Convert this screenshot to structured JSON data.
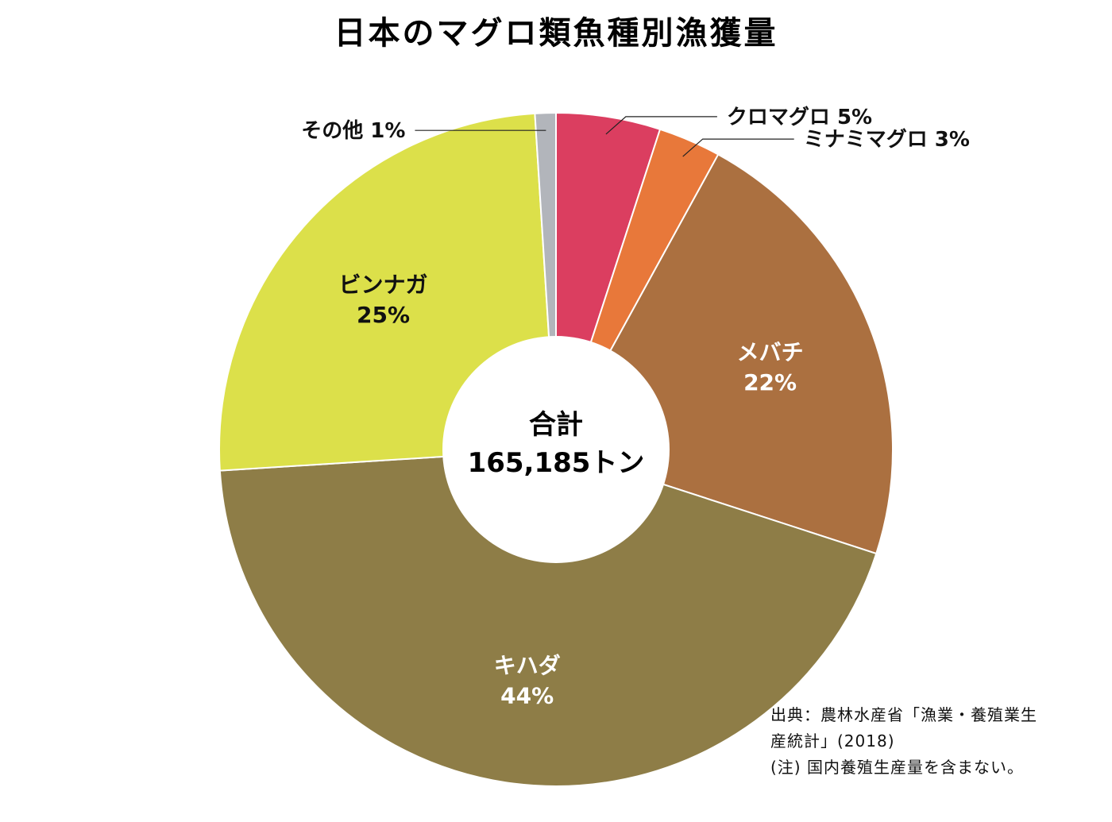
{
  "chart_data": {
    "type": "pie",
    "title": "日本のマグロ類魚種別漁獲量",
    "center_label": {
      "line1": "合計",
      "line2": "165,185トン"
    },
    "slices": [
      {
        "name": "クロマグロ",
        "value": 5,
        "value_label": "5%",
        "color": "#db3e60"
      },
      {
        "name": "ミナミマグロ",
        "value": 3,
        "value_label": "3%",
        "color": "#e8783a"
      },
      {
        "name": "メバチ",
        "value": 22,
        "value_label": "22%",
        "color": "#ab7040"
      },
      {
        "name": "キハダ",
        "value": 44,
        "value_label": "44%",
        "color": "#8e7d47"
      },
      {
        "name": "ビンナガ",
        "value": 25,
        "value_label": "25%",
        "color": "#dce04a"
      },
      {
        "name": "その他",
        "value": 1,
        "value_label": "1%",
        "color": "#b2b5bb"
      }
    ],
    "notes": [
      "出典：農林水産省「漁業・養殖業生",
      "産統計」(2018)",
      "(注) 国内養殖生産量を含まない。"
    ]
  }
}
